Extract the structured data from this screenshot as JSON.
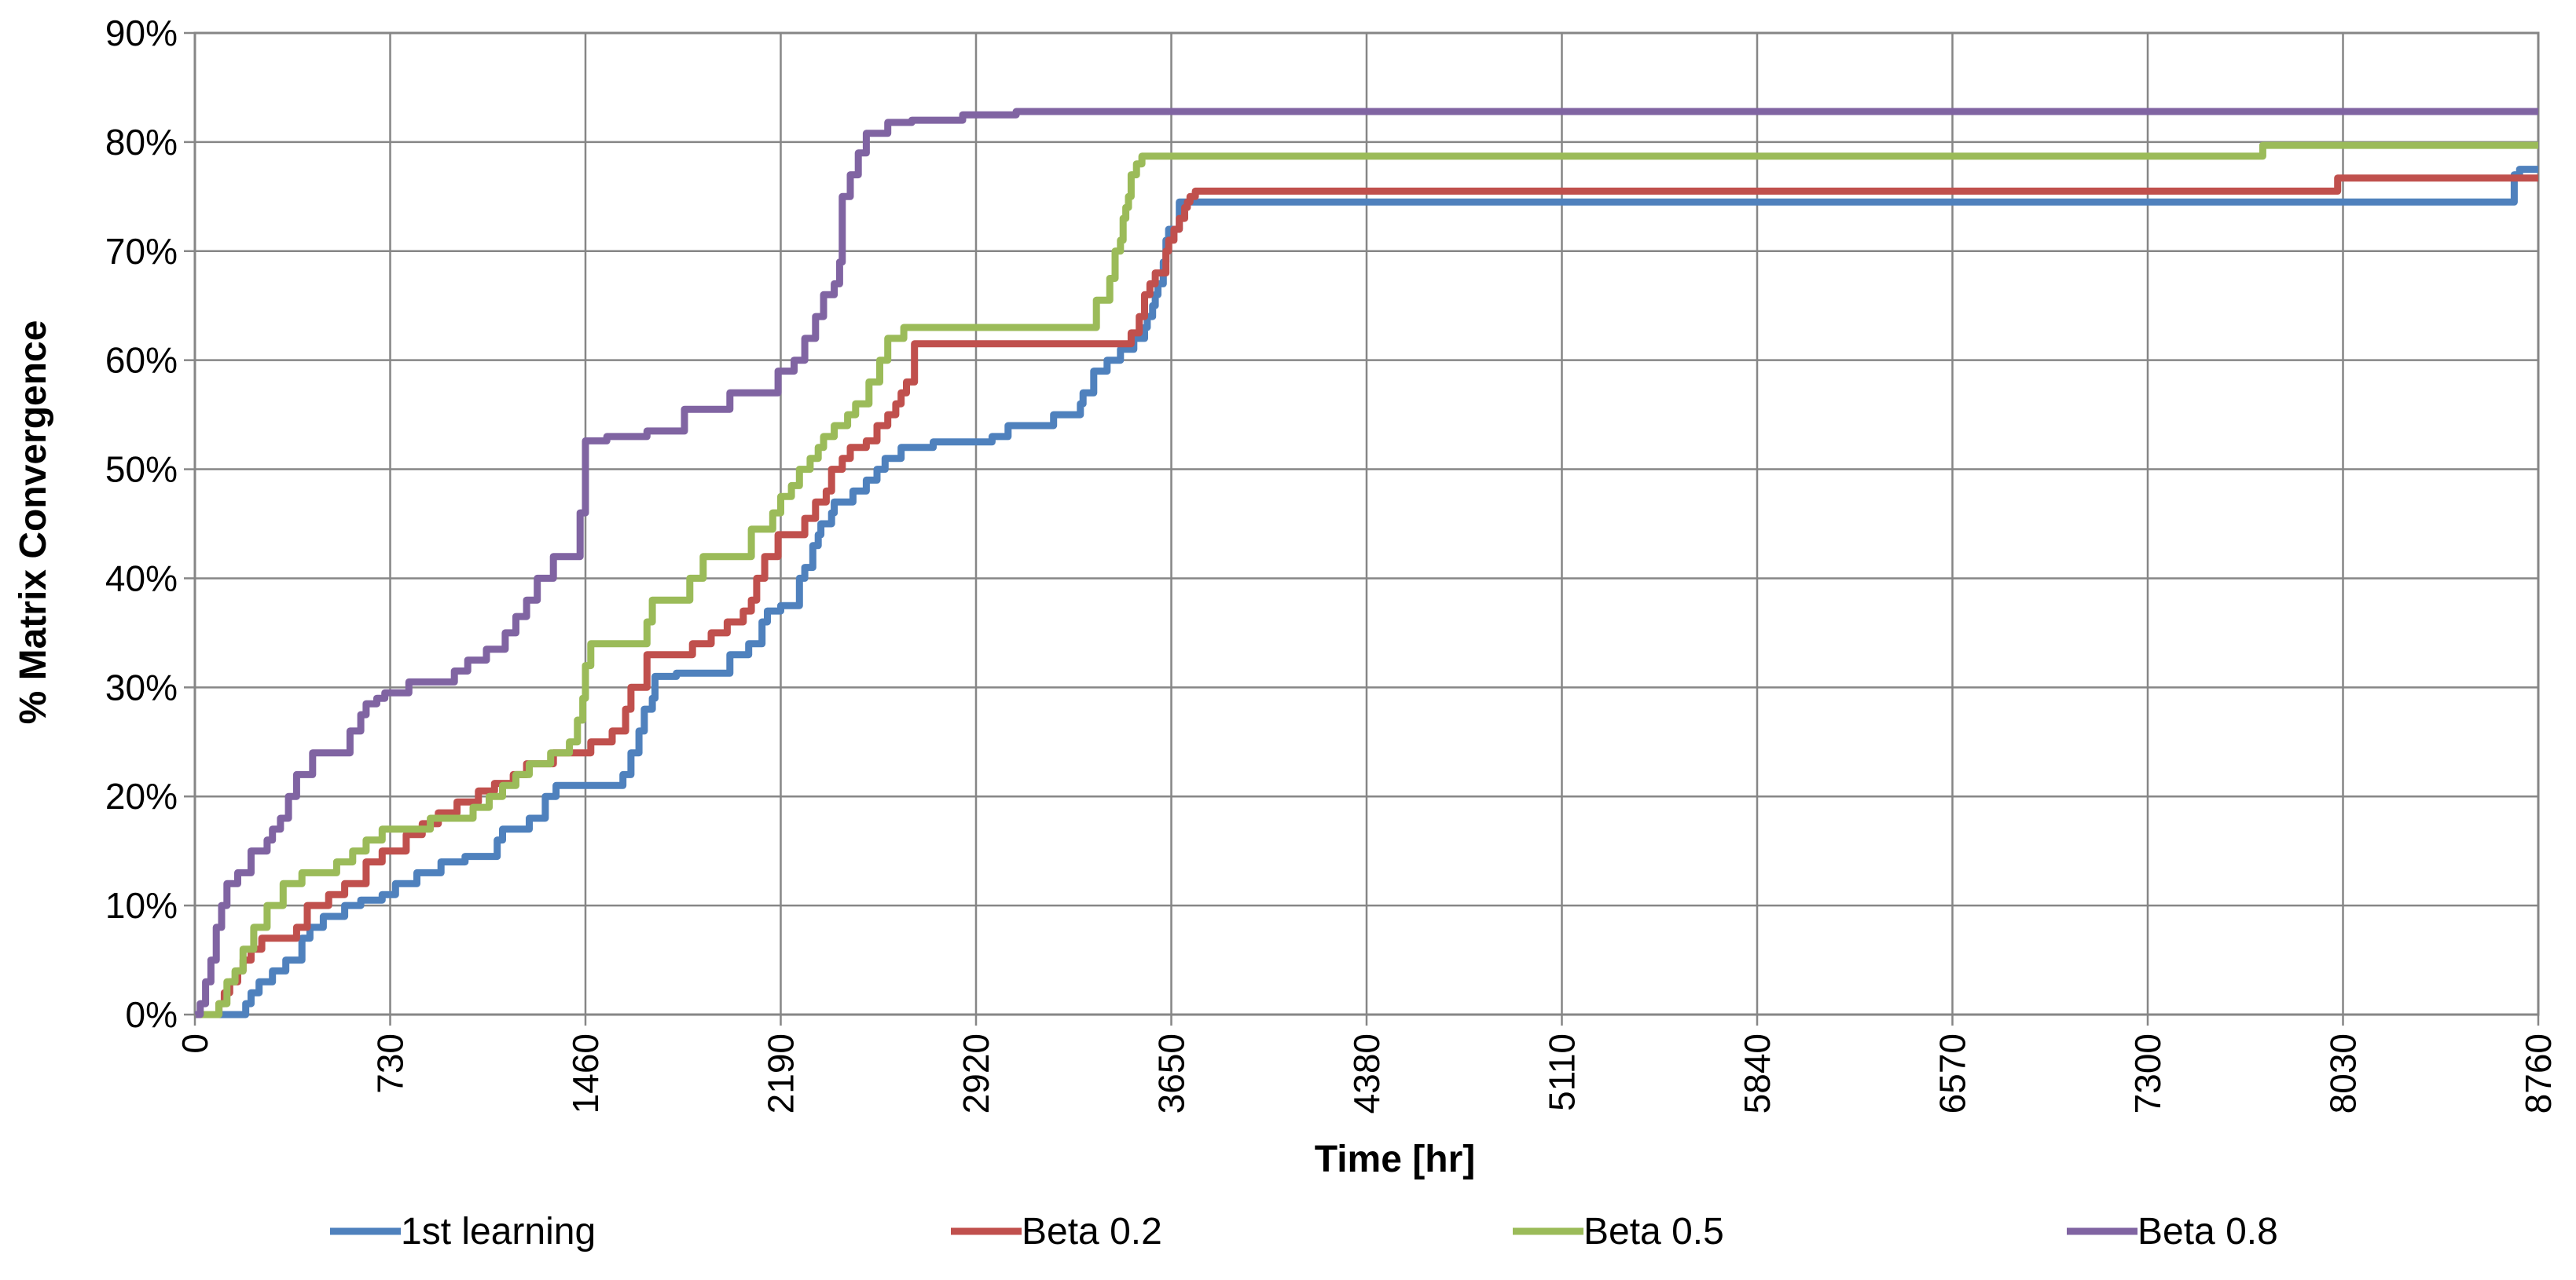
{
  "chart_data": {
    "type": "line",
    "step": true,
    "xlabel": "Time [hr]",
    "ylabel": "% Matrix Convergence",
    "xlim": [
      0,
      8760
    ],
    "ylim": [
      0,
      90
    ],
    "x_ticks": [
      "0",
      "730",
      "1460",
      "2190",
      "2920",
      "3650",
      "4380",
      "5110",
      "5840",
      "6570",
      "7300",
      "8030",
      "8760"
    ],
    "y_ticks": [
      "0%",
      "10%",
      "20%",
      "30%",
      "40%",
      "50%",
      "60%",
      "70%",
      "80%",
      "90%"
    ],
    "grid": true,
    "legend_position": "bottom",
    "series": [
      {
        "name": "1st learning",
        "color": "#4F81BD",
        "x": [
          0,
          180,
          190,
          210,
          240,
          290,
          340,
          400,
          430,
          480,
          560,
          620,
          700,
          750,
          830,
          920,
          1010,
          1130,
          1150,
          1250,
          1310,
          1350,
          1600,
          1630,
          1660,
          1680,
          1710,
          1720,
          1800,
          2000,
          2070,
          2120,
          2140,
          2190,
          2260,
          2280,
          2310,
          2330,
          2340,
          2380,
          2390,
          2460,
          2510,
          2550,
          2580,
          2640,
          2760,
          2980,
          3040,
          3210,
          3310,
          3320,
          3360,
          3410,
          3460,
          3510,
          3550,
          3560,
          3580,
          3590,
          3600,
          3620,
          3630,
          3640,
          3680,
          6960,
          8670,
          8690,
          8760
        ],
        "y": [
          0,
          0,
          1,
          2,
          3,
          4,
          5,
          7,
          8,
          9,
          10,
          10.5,
          11,
          12,
          13,
          14,
          14.5,
          16,
          17,
          18,
          20,
          21,
          22,
          24,
          26,
          28,
          29,
          31,
          31.3,
          33,
          34,
          36,
          37,
          37.5,
          40,
          41,
          43,
          44,
          45,
          46,
          47,
          48,
          49,
          50,
          51,
          52,
          52.5,
          53,
          54,
          55,
          56,
          57,
          59,
          60,
          61,
          62,
          63,
          64,
          65,
          66,
          67,
          69,
          71,
          72,
          74.5,
          74.5,
          77,
          77.5,
          77.5
        ]
      },
      {
        "name": "Beta 0.2",
        "color": "#C0504D",
        "x": [
          0,
          70,
          90,
          110,
          130,
          160,
          180,
          210,
          250,
          380,
          420,
          500,
          560,
          640,
          700,
          790,
          850,
          910,
          980,
          1060,
          1120,
          1190,
          1240,
          1340,
          1480,
          1560,
          1610,
          1630,
          1690,
          1860,
          1930,
          1990,
          2050,
          2080,
          2100,
          2130,
          2180,
          2280,
          2320,
          2360,
          2380,
          2420,
          2450,
          2510,
          2550,
          2590,
          2620,
          2640,
          2660,
          2690,
          3430,
          3500,
          3530,
          3550,
          3570,
          3590,
          3630,
          3640,
          3660,
          3680,
          3700,
          3710,
          3720,
          3740,
          8010,
          8760
        ],
        "y": [
          0,
          0,
          1,
          2,
          3,
          4,
          5,
          6,
          7,
          8,
          10,
          11,
          12,
          14,
          15,
          16.5,
          17.5,
          18.5,
          19.5,
          20.5,
          21.2,
          22,
          23,
          24,
          25,
          26,
          28,
          30,
          33,
          34,
          35,
          36,
          37,
          38,
          40,
          42,
          44,
          45.5,
          47,
          48,
          50,
          51,
          52,
          52.6,
          54,
          55,
          56,
          57,
          58,
          61.5,
          61.5,
          62.5,
          64,
          66,
          67,
          68,
          70,
          71,
          72,
          73,
          74,
          74.5,
          75,
          75.5,
          76.7,
          76.7
        ]
      },
      {
        "name": "Beta 0.5",
        "color": "#9BBB59",
        "x": [
          0,
          70,
          90,
          120,
          150,
          180,
          220,
          270,
          330,
          400,
          530,
          590,
          640,
          700,
          880,
          1040,
          1100,
          1150,
          1200,
          1250,
          1330,
          1400,
          1430,
          1450,
          1460,
          1480,
          1690,
          1710,
          1850,
          1900,
          2080,
          2160,
          2190,
          2230,
          2260,
          2300,
          2330,
          2350,
          2390,
          2440,
          2470,
          2520,
          2560,
          2590,
          2650,
          3370,
          3420,
          3440,
          3460,
          3470,
          3480,
          3490,
          3500,
          3520,
          3540,
          7730,
          8760
        ],
        "y": [
          0,
          0,
          1,
          3,
          4,
          6,
          8,
          10,
          12,
          13,
          14,
          15,
          16,
          17,
          18,
          19,
          20,
          21,
          22,
          23,
          24,
          25,
          27,
          29,
          32,
          34,
          36,
          38,
          40,
          42,
          44.5,
          46,
          47.5,
          48.5,
          50,
          51,
          52,
          53,
          54,
          55,
          56,
          58,
          60,
          62,
          63,
          65.5,
          67.5,
          70,
          71,
          73,
          74,
          75,
          77,
          78,
          78.7,
          79.7,
          79.7
        ]
      },
      {
        "name": "Beta 0.8",
        "color": "#8064A2",
        "x": [
          0,
          20,
          40,
          60,
          80,
          100,
          120,
          160,
          210,
          270,
          290,
          320,
          350,
          380,
          440,
          580,
          620,
          640,
          680,
          710,
          800,
          970,
          1020,
          1090,
          1160,
          1200,
          1240,
          1280,
          1340,
          1440,
          1460,
          1540,
          1690,
          1830,
          2000,
          2180,
          2240,
          2280,
          2320,
          2350,
          2390,
          2410,
          2420,
          2450,
          2480,
          2510,
          2590,
          2680,
          2870,
          3070,
          8760
        ],
        "y": [
          0,
          1,
          3,
          5,
          8,
          10,
          12,
          13,
          15,
          16,
          17,
          18,
          20,
          22,
          24,
          26,
          27.5,
          28.5,
          29,
          29.5,
          30.5,
          31.5,
          32.5,
          33.5,
          35,
          36.5,
          38,
          40,
          42,
          46,
          52.6,
          53,
          53.5,
          55.5,
          57,
          59,
          60,
          62,
          64,
          66,
          67,
          69,
          75,
          77,
          79,
          80.8,
          81.8,
          82,
          82.5,
          82.8,
          82.8
        ]
      }
    ]
  }
}
